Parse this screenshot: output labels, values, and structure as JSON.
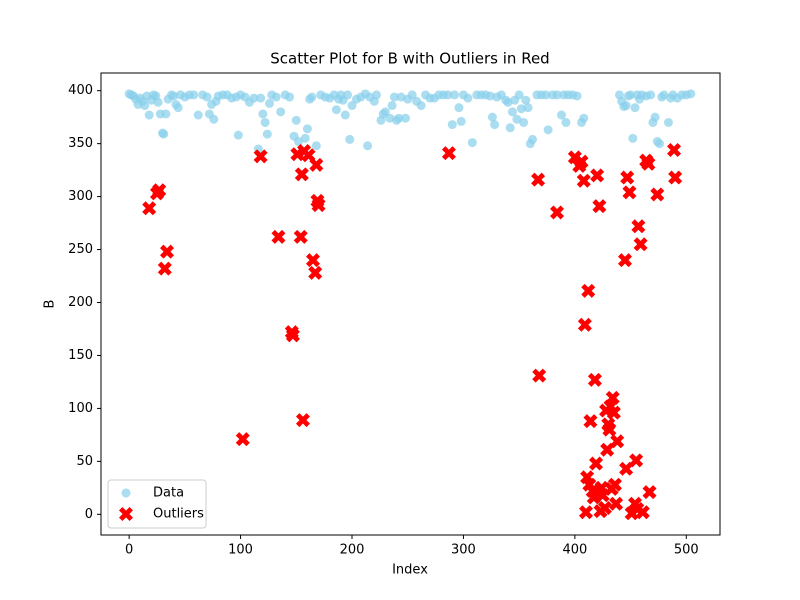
{
  "chart_data": {
    "type": "scatter",
    "title": "Scatter Plot for B with Outliers in Red",
    "x_label": "Index",
    "y_label": "B",
    "xlim": [
      -25.25,
      530.25
    ],
    "ylim": [
      -19.5,
      416.7
    ],
    "xticks": [
      0,
      100,
      200,
      300,
      400,
      500
    ],
    "yticks": [
      0,
      50,
      100,
      150,
      200,
      250,
      300,
      350,
      400
    ],
    "grid": false,
    "legend": "lower left",
    "series": [
      {
        "name": "Data",
        "color": "#87ceeb",
        "marker": "circle",
        "x": [
          0,
          2,
          4,
          6,
          8,
          10,
          12,
          14,
          16,
          18,
          20,
          22,
          24,
          26,
          28,
          30,
          31,
          33,
          35,
          38,
          40,
          42,
          44,
          46,
          50,
          54,
          58,
          62,
          66,
          70,
          72,
          74,
          76,
          78,
          80,
          84,
          88,
          92,
          96,
          98,
          100,
          104,
          108,
          112,
          116,
          118,
          120,
          122,
          124,
          126,
          128,
          132,
          136,
          140,
          144,
          148,
          150,
          152,
          156,
          158,
          160,
          162,
          164,
          168,
          172,
          176,
          180,
          184,
          186,
          188,
          190,
          192,
          194,
          196,
          198,
          200,
          204,
          208,
          212,
          214,
          216,
          220,
          222,
          226,
          228,
          230,
          234,
          236,
          238,
          240,
          242,
          244,
          248,
          250,
          254,
          258,
          262,
          266,
          270,
          274,
          278,
          282,
          286,
          290,
          292,
          296,
          298,
          300,
          304,
          308,
          312,
          316,
          320,
          324,
          326,
          328,
          330,
          334,
          338,
          340,
          342,
          344,
          346,
          348,
          350,
          352,
          354,
          356,
          358,
          360,
          362,
          366,
          370,
          374,
          376,
          380,
          384,
          388,
          390,
          392,
          394,
          398,
          402,
          406,
          408,
          440,
          442,
          444,
          446,
          448,
          450,
          452,
          454,
          456,
          458,
          460,
          464,
          468,
          470,
          472,
          474,
          476,
          478,
          480,
          484,
          486,
          488,
          492,
          496,
          500,
          504
        ],
        "values": [
          397,
          396,
          395,
          392,
          387,
          393,
          390,
          386,
          395,
          377,
          391,
          396,
          395,
          389,
          378,
          360,
          359,
          378,
          392,
          396,
          395,
          387,
          384,
          396,
          394,
          396,
          396,
          377,
          396,
          394,
          378,
          387,
          373,
          390,
          395,
          396,
          396,
          393,
          394,
          358,
          396,
          394,
          389,
          393,
          345,
          393,
          378,
          370,
          359,
          388,
          396,
          394,
          380,
          396,
          394,
          357,
          372,
          352,
          341,
          355,
          364,
          392,
          394,
          348,
          396,
          394,
          393,
          396,
          382,
          392,
          396,
          391,
          377,
          396,
          354,
          386,
          392,
          394,
          397,
          348,
          394,
          390,
          396,
          372,
          378,
          380,
          374,
          386,
          394,
          372,
          374,
          394,
          374,
          392,
          396,
          390,
          386,
          396,
          393,
          393,
          396,
          396,
          396,
          368,
          396,
          384,
          371,
          396,
          393,
          351,
          396,
          396,
          396,
          395,
          375,
          368,
          394,
          396,
          391,
          389,
          365,
          380,
          391,
          373,
          396,
          383,
          370,
          391,
          384,
          350,
          354,
          396,
          396,
          396,
          363,
          396,
          396,
          377,
          396,
          370,
          396,
          396,
          395,
          370,
          374,
          396,
          390,
          385,
          386,
          395,
          396,
          355,
          384,
          396,
          392,
          396,
          395,
          396,
          370,
          375,
          352,
          350,
          394,
          396,
          370,
          393,
          396,
          393,
          396,
          396,
          397
        ]
      },
      {
        "name": "Outliers",
        "color": "#ff0000",
        "marker": "x",
        "x": [
          18,
          25,
          27,
          32,
          34,
          102,
          118,
          134,
          146,
          147,
          151,
          154,
          155,
          156,
          157,
          161,
          165,
          167,
          168,
          169,
          170,
          287,
          367,
          368,
          384,
          400,
          404,
          406,
          408,
          409,
          410,
          411,
          412,
          413,
          414,
          416,
          417,
          418,
          419,
          420,
          421,
          422,
          423,
          424,
          425,
          427,
          428,
          429,
          430,
          431,
          432,
          433,
          434,
          435,
          436,
          437,
          438,
          445,
          446,
          447,
          449,
          451,
          454,
          455,
          456,
          457,
          459,
          461,
          464,
          466,
          467,
          474,
          489,
          490
        ],
        "values": [
          289,
          303,
          306,
          232,
          248,
          71,
          338,
          262,
          172,
          169,
          340,
          262,
          321,
          89,
          343,
          339,
          240,
          228,
          330,
          296,
          292,
          341,
          316,
          131,
          285,
          337,
          329,
          333,
          315,
          179,
          2,
          35,
          211,
          28,
          88,
          22,
          16,
          127,
          48,
          320,
          21,
          291,
          3,
          25,
          18,
          6,
          98,
          61,
          85,
          80,
          102,
          24,
          110,
          96,
          28,
          10,
          69,
          240,
          43,
          318,
          304,
          1,
          10,
          51,
          5,
          272,
          255,
          2,
          334,
          331,
          21,
          302,
          344,
          318
        ]
      }
    ]
  }
}
